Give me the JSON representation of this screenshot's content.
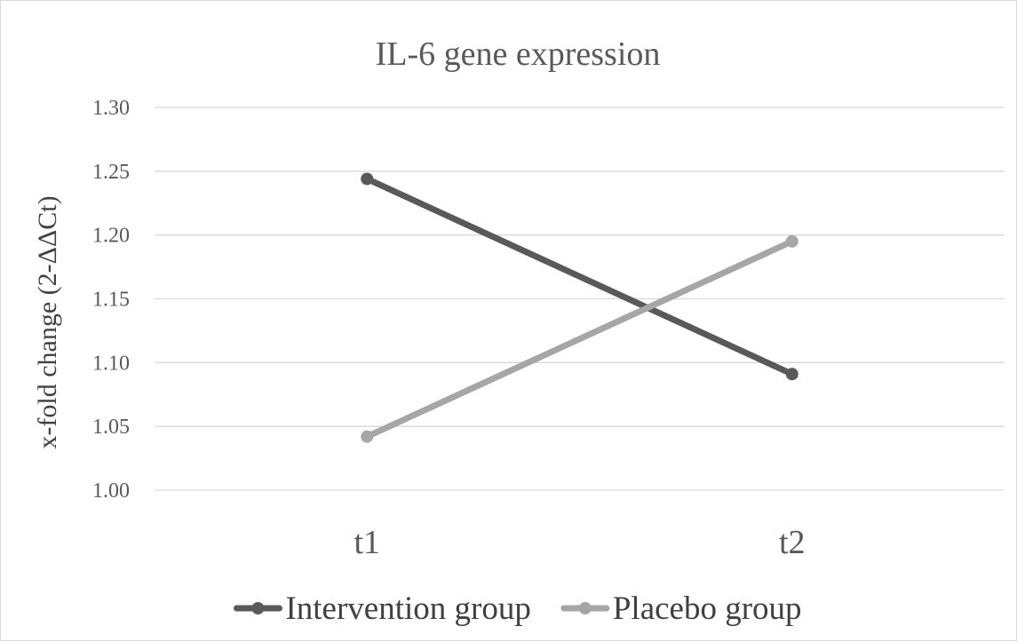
{
  "chart_data": {
    "type": "line",
    "title": "IL-6 gene expression",
    "xlabel": "",
    "ylabel": "x-fold change (2-ΔΔCt)",
    "categories": [
      "t1",
      "t2"
    ],
    "ylim": [
      1.0,
      1.3
    ],
    "yticks": [
      "1.00",
      "1.05",
      "1.10",
      "1.15",
      "1.20",
      "1.25",
      "1.30"
    ],
    "grid": true,
    "legend_position": "bottom",
    "series": [
      {
        "name": "Intervention group",
        "values": [
          1.244,
          1.091
        ],
        "color": "#595959"
      },
      {
        "name": "Placebo group",
        "values": [
          1.042,
          1.195
        ],
        "color": "#a6a6a6"
      }
    ]
  }
}
